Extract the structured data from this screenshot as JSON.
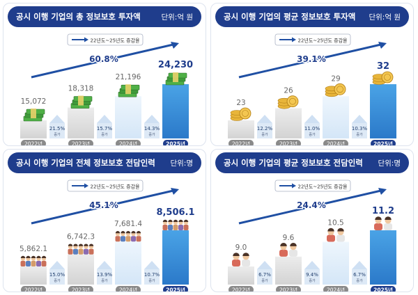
{
  "legend_label": "22년도~25년도 증감율",
  "increase_label": "증가",
  "colors": {
    "header": "#1f3d8c",
    "arrow": "#1f4fa3",
    "highlight": "#2b79c9",
    "bar_gray": "#d3d3d3",
    "bar_light": "#d4e6f7"
  },
  "chart_data": [
    {
      "type": "bar",
      "title": "공시 이행 기업의 총 정보보호 투자액",
      "unit": "단위:억 원",
      "categories": [
        "2022년",
        "2023년",
        "2024년",
        "2025년"
      ],
      "values": [
        15072,
        18318,
        21196,
        24230
      ],
      "value_labels": [
        "15,072",
        "18,318",
        "21,196",
        "24,230"
      ],
      "growth": [
        "21.5%",
        "15.7%",
        "14.3%"
      ],
      "total_growth": "60.8%",
      "icon": "money-stack"
    },
    {
      "type": "bar",
      "title": "공시 이행 기업의 평균 정보보호 투자액",
      "unit": "단위:억 원",
      "categories": [
        "2022년",
        "2023년",
        "2024년",
        "2025년"
      ],
      "values": [
        23,
        26,
        29,
        32
      ],
      "value_labels": [
        "23",
        "26",
        "29",
        "32"
      ],
      "growth": [
        "12.2%",
        "11.0%",
        "10.3%"
      ],
      "total_growth": "39.1%",
      "icon": "coins"
    },
    {
      "type": "bar",
      "title": "공시 이행 기업의 전체 정보보호 전담인력",
      "unit": "단위:명",
      "categories": [
        "2022년",
        "2023년",
        "2024년",
        "2025년"
      ],
      "values": [
        5862.1,
        6742.3,
        7681.4,
        8506.1
      ],
      "value_labels": [
        "5,862.1",
        "6,742.3",
        "7,681.4",
        "8,506.1"
      ],
      "growth": [
        "15.0%",
        "13.9%",
        "10.7%"
      ],
      "total_growth": "45.1%",
      "icon": "people-group"
    },
    {
      "type": "bar",
      "title": "공시 이행 기업의 평균 정보보호 전담인력",
      "unit": "단위:명",
      "categories": [
        "2022년",
        "2023년",
        "2024년",
        "2025년"
      ],
      "values": [
        9.0,
        9.6,
        10.5,
        11.2
      ],
      "value_labels": [
        "9.0",
        "9.6",
        "10.5",
        "11.2"
      ],
      "growth": [
        "6.7%",
        "9.4%",
        "6.7%"
      ],
      "total_growth": "24.4%",
      "icon": "people-pair"
    }
  ]
}
